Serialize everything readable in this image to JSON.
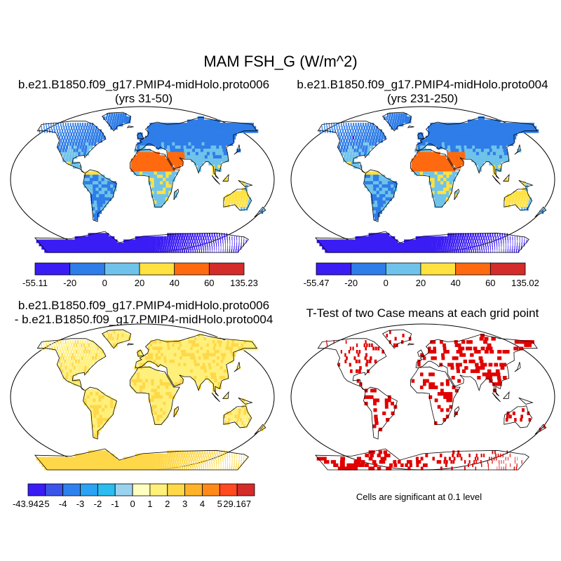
{
  "title": "MAM FSH_G (W/m^2)",
  "panels": [
    {
      "id": "case1",
      "title_line1": "b.e21.B1850.f09_g17.PMIP4-midHolo.proto006",
      "title_line2": "(yrs 31-50)"
    },
    {
      "id": "case2",
      "title_line1": "b.e21.B1850.f09_g17.PMIP4-midHolo.proto004",
      "title_line2": "(yrs 231-250)"
    },
    {
      "id": "diff",
      "title_line1": "b.e21.B1850.f09_g17.PMIP4-midHolo.proto006",
      "title_line2": "- b.e21.B1850.f09_g17.PMIP4-midHolo.proto004"
    },
    {
      "id": "ttest",
      "title_line1": "T-Test of two Case means at each grid point",
      "title_line2": ""
    }
  ],
  "significance_note": "Cells are significant at 0.1 level",
  "chart_data": [
    {
      "type": "heatmap",
      "name": "case1",
      "variable": "FSH_G",
      "units": "W/m^2",
      "colorbar": {
        "labels": [
          "-55.11",
          "-20",
          "0",
          "20",
          "40",
          "60",
          "135.23"
        ],
        "colors": [
          "#3a1cf5",
          "#2e7de8",
          "#6fc3ea",
          "#ffe23f",
          "#ff6a10",
          "#d42b2b"
        ],
        "min": -55.11,
        "max": 135.23
      }
    },
    {
      "type": "heatmap",
      "name": "case2",
      "variable": "FSH_G",
      "units": "W/m^2",
      "colorbar": {
        "labels": [
          "-55.47",
          "-20",
          "0",
          "20",
          "40",
          "60",
          "135.02"
        ],
        "colors": [
          "#3a1cf5",
          "#2e7de8",
          "#6fc3ea",
          "#ffe23f",
          "#ff6a10",
          "#d42b2b"
        ],
        "min": -55.47,
        "max": 135.02
      }
    },
    {
      "type": "heatmap",
      "name": "difference",
      "colorbar": {
        "labels": [
          "-43.942",
          "-5",
          "-4",
          "-3",
          "-2",
          "-1",
          "0",
          "1",
          "2",
          "3",
          "4",
          "5",
          "29.167"
        ],
        "colors": [
          "#3a1cf5",
          "#3a55e8",
          "#2f82ee",
          "#2aa3f2",
          "#2cbcf0",
          "#9bd3ee",
          "#ffffc0",
          "#fff07a",
          "#ffd84a",
          "#ffb22a",
          "#ff8a1a",
          "#ff4a22",
          "#d42b2b"
        ],
        "min": -43.942,
        "max": 29.167
      }
    },
    {
      "type": "heatmap",
      "name": "ttest",
      "significance_level": 0.1,
      "significant_color": "#e00000"
    }
  ]
}
